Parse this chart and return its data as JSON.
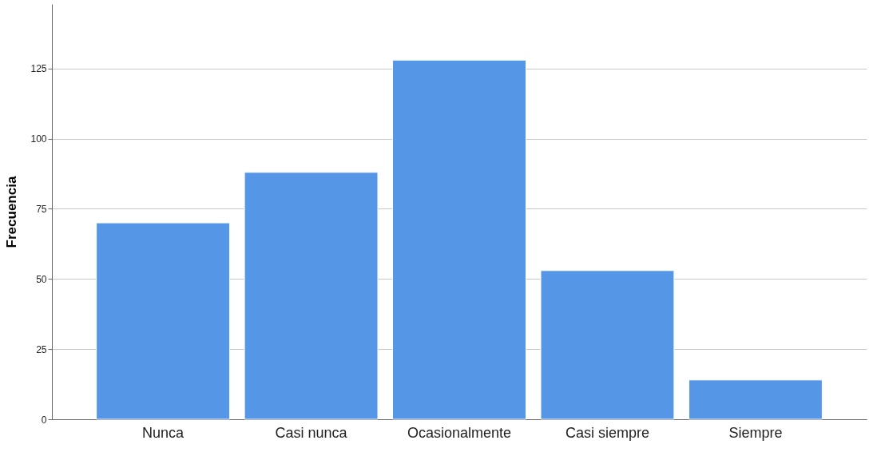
{
  "chart_data": {
    "type": "bar",
    "ylabel": "Frecuencia",
    "categories": [
      "Nunca",
      "Casi nunca",
      "Ocasionalmente",
      "Casi siempre",
      "Siempre"
    ],
    "values": [
      70,
      88,
      128,
      53,
      14
    ],
    "color": "#5596e6",
    "ylim": [
      0,
      148
    ],
    "yticks": [
      0,
      25,
      50,
      75,
      100,
      125
    ],
    "grid": "y"
  }
}
